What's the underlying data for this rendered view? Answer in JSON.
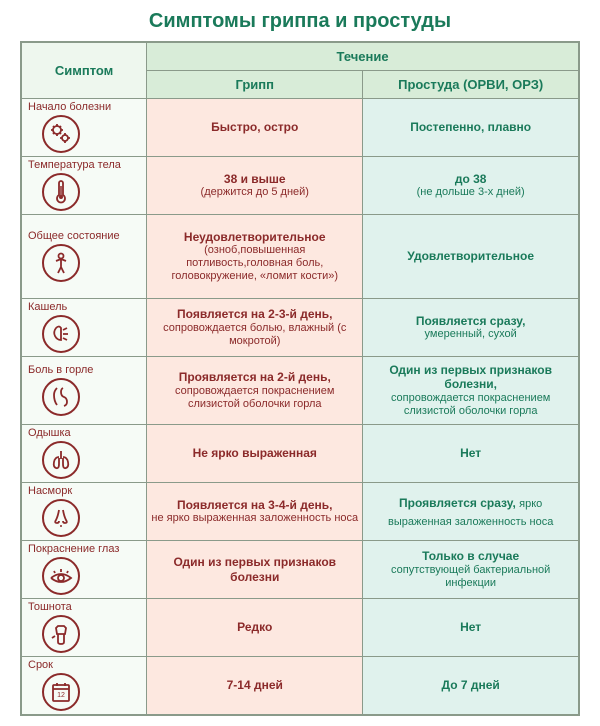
{
  "title": "Симптомы гриппа и простуды",
  "headers": {
    "symptom": "Симптом",
    "course": "Течение",
    "flu": "Грипп",
    "cold": "Простуда (ОРВИ, ОРЗ)"
  },
  "colors": {
    "title": "#1a7a5a",
    "fluText": "#8b2a2a",
    "coldText": "#1a7a5a",
    "fluBg": "#fde8e0",
    "coldBg": "#e0f2ed",
    "symptomBg": "#f6fbf6",
    "headerBg": "#d8ecd8",
    "border": "#8a9a8a",
    "iconStroke": "#8b2a2a"
  },
  "rows": [
    {
      "symptom": "Начало болезни",
      "icon": "onset-icon",
      "flu": {
        "bold": "Быстро, остро",
        "reg": ""
      },
      "cold": {
        "bold": "Постепенно, плавно",
        "reg": ""
      }
    },
    {
      "symptom": "Температура тела",
      "icon": "thermometer-icon",
      "flu": {
        "bold": "38 и выше",
        "reg": "(держится до 5 дней)"
      },
      "cold": {
        "bold": "до 38",
        "reg": "(не дольше 3-х дней)"
      }
    },
    {
      "symptom": "Общее состояние",
      "icon": "body-icon",
      "flu": {
        "bold": "Неудовлетворительное",
        "reg": "(озноб,повышенная потливость,головная боль, головокружение, «ломит кости»)"
      },
      "cold": {
        "bold": "Удовлетворительное",
        "reg": ""
      }
    },
    {
      "symptom": "Кашель",
      "icon": "cough-icon",
      "flu": {
        "bold": "Появляется на 2-3-й день,",
        "reg": "сопровождается болью, влажный  (с мокротой)"
      },
      "cold": {
        "bold": "Появляется сразу,",
        "reg": "умеренный, сухой"
      }
    },
    {
      "symptom": "Боль в горле",
      "icon": "throat-icon",
      "flu": {
        "bold": "Проявляется на 2-й день,",
        "reg": "сопровождается покраснениeм слизистой оболочки горла"
      },
      "cold": {
        "bold": "Один из первых признаков болезни,",
        "reg": "сопровождается покраснением слизистой оболочки горла"
      }
    },
    {
      "symptom": "Одышка",
      "icon": "lungs-icon",
      "flu": {
        "bold": "Не ярко выраженная",
        "reg": ""
      },
      "cold": {
        "bold": "Нет",
        "reg": ""
      }
    },
    {
      "symptom": "Насморк",
      "icon": "nose-icon",
      "flu": {
        "bold": "Появляется на 3-4-й день,",
        "reg": "не ярко выраженная заложенность носа"
      },
      "cold": {
        "bold": "Проявляется сразу,",
        "reg2": "ярко выраженная заложенность носа",
        "reg": ""
      }
    },
    {
      "symptom": "Покраснение глаз",
      "icon": "eye-icon",
      "flu": {
        "bold": "Один из первых признаков болезни",
        "reg": ""
      },
      "cold": {
        "bold": "Только в случае",
        "reg": "сопутствующей бактериальной инфекции"
      }
    },
    {
      "symptom": "Тошнота",
      "icon": "nausea-icon",
      "flu": {
        "bold": "Редко",
        "reg": ""
      },
      "cold": {
        "bold": "Нет",
        "reg": ""
      }
    },
    {
      "symptom": "Срок",
      "icon": "calendar-icon",
      "flu": {
        "bold": "7-14  дней",
        "reg": ""
      },
      "cold": {
        "bold": "До 7 дней",
        "reg": ""
      }
    }
  ]
}
